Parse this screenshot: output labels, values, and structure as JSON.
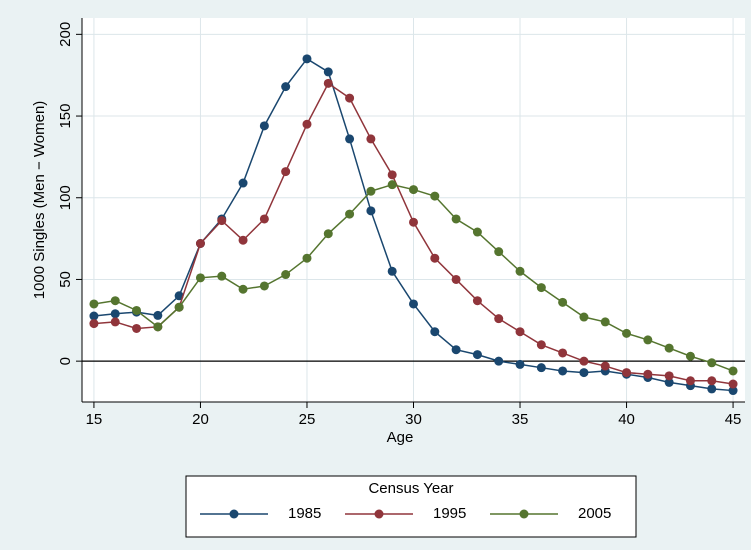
{
  "chart_data": {
    "type": "line",
    "x_label": "Age",
    "y_label": "1000 Singles (Men − Women)",
    "x": [
      15,
      16,
      17,
      18,
      19,
      20,
      21,
      22,
      23,
      24,
      25,
      26,
      27,
      28,
      29,
      30,
      31,
      32,
      33,
      34,
      35,
      36,
      37,
      38,
      39,
      40,
      41,
      42,
      43,
      44,
      45
    ],
    "series": [
      {
        "name": "1985",
        "color": "#1a476f",
        "values": [
          27.6,
          29,
          30,
          28,
          40,
          72,
          87,
          109,
          144,
          168,
          185,
          177,
          136,
          92,
          55,
          35,
          18,
          7,
          4,
          0,
          -2,
          -4,
          -6,
          -7,
          -6,
          -8,
          -10,
          -13,
          -15,
          -17,
          -18
        ]
      },
      {
        "name": "1995",
        "color": "#90353b",
        "values": [
          23,
          24,
          20,
          21,
          33,
          72,
          86,
          74,
          87,
          116,
          145,
          170,
          161,
          136,
          114,
          85,
          63,
          50,
          37,
          26,
          18,
          10,
          5,
          0,
          -3,
          -7,
          -8,
          -9,
          -12,
          -12,
          -14
        ]
      },
      {
        "name": "2005",
        "color": "#55752f",
        "values": [
          35,
          37,
          31,
          21,
          33,
          51,
          52,
          44,
          46,
          53,
          63,
          78,
          90,
          104,
          108,
          105,
          101,
          87,
          79,
          67,
          55,
          45,
          36,
          27,
          24,
          17,
          13,
          8,
          3,
          -1,
          -6
        ]
      }
    ],
    "xlim": [
      14.44,
      45.56
    ],
    "ylim": [
      -25,
      210
    ],
    "xticks": [
      15,
      20,
      25,
      30,
      35,
      40,
      45
    ],
    "yticks": [
      0,
      50,
      100,
      150,
      200
    ],
    "reference_line": 0,
    "grid": true,
    "legend_title": "Census Year",
    "legend_position": "bottom"
  }
}
